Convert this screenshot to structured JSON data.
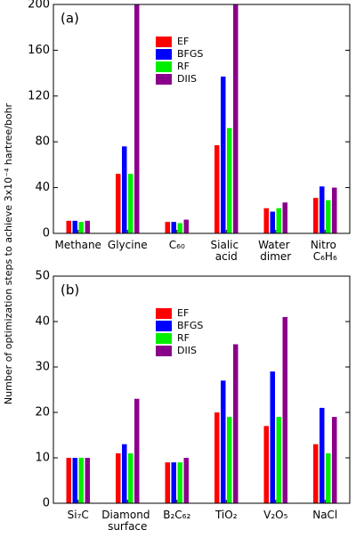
{
  "chart_data": [
    {
      "type": "bar",
      "label": "(a)",
      "ylabel": "Number of optimization steps to achieve 3x10⁻⁴ hartree/bohr",
      "categories": [
        "Methane",
        "Glycine",
        "C₆₀",
        "Sialic acid",
        "Water dimer",
        "Nitro C₆H₆"
      ],
      "series": [
        {
          "name": "EF",
          "color": "#ff0000",
          "values": [
            11,
            52,
            10,
            77,
            22,
            31
          ]
        },
        {
          "name": "BFGS",
          "color": "#0000ff",
          "values": [
            11,
            76,
            10,
            137,
            19,
            41
          ]
        },
        {
          "name": "RF",
          "color": "#00ee00",
          "values": [
            10,
            52,
            9,
            92,
            22,
            29
          ]
        },
        {
          "name": "DIIS",
          "color": "#8b008b",
          "values": [
            11,
            200,
            12,
            200,
            27,
            40
          ]
        }
      ],
      "ylim": [
        0,
        200
      ],
      "yticks": [
        0,
        40,
        80,
        120,
        160,
        200
      ]
    },
    {
      "type": "bar",
      "label": "(b)",
      "categories": [
        "Si₇C",
        "Diamond surface",
        "B₂C₆₂",
        "TiO₂",
        "V₂O₅",
        "NaCl"
      ],
      "series": [
        {
          "name": "EF",
          "color": "#ff0000",
          "values": [
            10,
            11,
            9,
            20,
            17,
            13
          ]
        },
        {
          "name": "BFGS",
          "color": "#0000ff",
          "values": [
            10,
            13,
            9,
            27,
            29,
            21
          ]
        },
        {
          "name": "RF",
          "color": "#00ee00",
          "values": [
            10,
            11,
            9,
            19,
            19,
            11
          ]
        },
        {
          "name": "DIIS",
          "color": "#8b008b",
          "values": [
            10,
            23,
            10,
            35,
            41,
            19
          ]
        }
      ],
      "ylim": [
        0,
        50
      ],
      "yticks": [
        0,
        10,
        20,
        30,
        40,
        50
      ]
    }
  ]
}
